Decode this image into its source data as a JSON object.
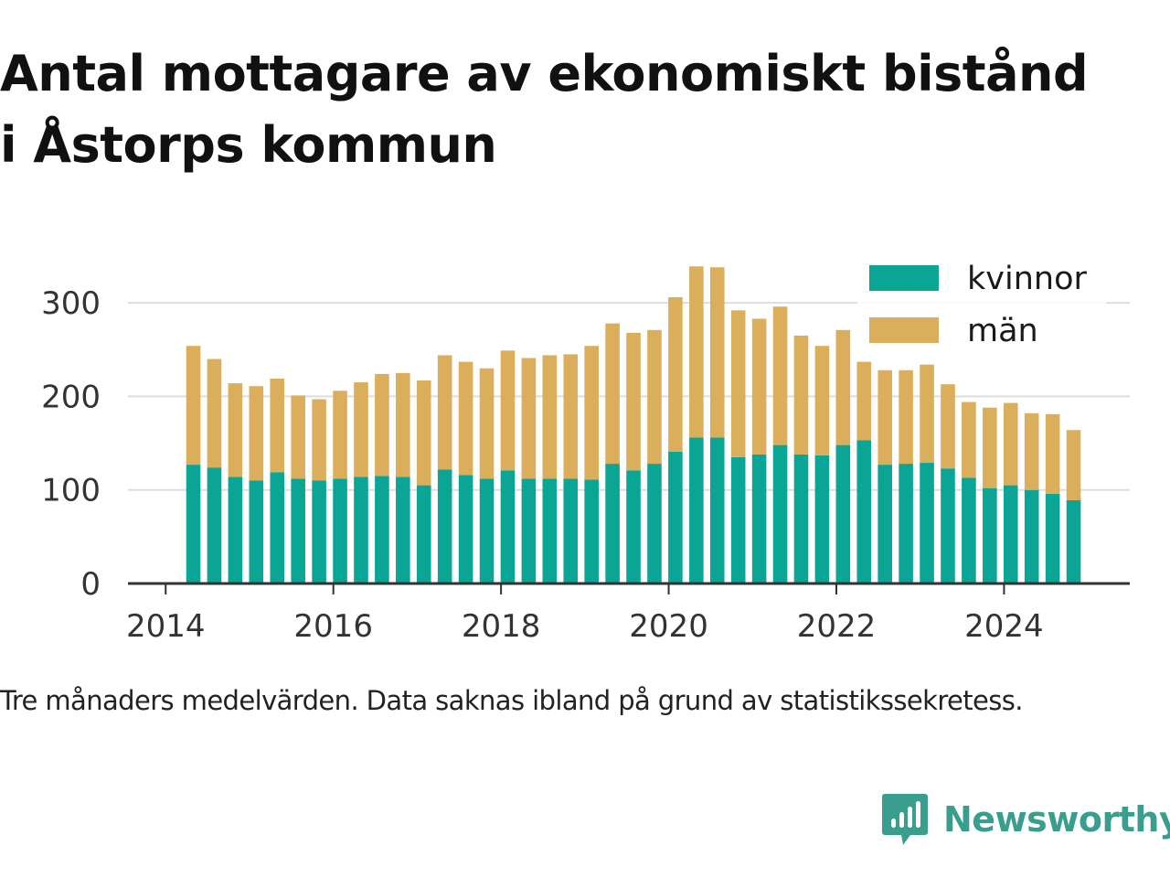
{
  "title_line1": "Antal mottagare av ekonomiskt bistånd",
  "title_line2": "i Åstorps kommun",
  "caption": "Tre månaders medelvärden. Data saknas ibland på grund av statistikssekretess.",
  "brand": {
    "name": "Newsworthy",
    "color": "#3a9e8e",
    "icon": "chart-speech-bubble-icon"
  },
  "colors": {
    "kvinnor": "#0aa595",
    "man": "#dbae5b",
    "grid": "#dddddd",
    "axis": "#333333",
    "tick_text": "#333333"
  },
  "chart_data": {
    "type": "bar",
    "stacked": true,
    "title": "Antal mottagare av ekonomiskt bistånd i Åstorps kommun",
    "xlabel": "",
    "ylabel": "",
    "xlim": [
      2013.55,
      2025.5
    ],
    "ylim": [
      0,
      350
    ],
    "x_ticks": [
      2014,
      2016,
      2018,
      2020,
      2022,
      2024
    ],
    "y_ticks": [
      0,
      100,
      200,
      300
    ],
    "grid": true,
    "legend_position": "top-right",
    "x": [
      2014.33,
      2014.58,
      2014.83,
      2015.08,
      2015.33,
      2015.58,
      2015.83,
      2016.08,
      2016.33,
      2016.58,
      2016.83,
      2017.08,
      2017.33,
      2017.58,
      2017.83,
      2018.08,
      2018.33,
      2018.58,
      2018.83,
      2019.08,
      2019.33,
      2019.58,
      2019.83,
      2020.08,
      2020.33,
      2020.58,
      2020.83,
      2021.08,
      2021.33,
      2021.58,
      2021.83,
      2022.08,
      2022.33,
      2022.58,
      2022.83,
      2023.08,
      2023.33,
      2023.58,
      2023.83,
      2024.08,
      2024.33,
      2024.58,
      2024.83
    ],
    "series": [
      {
        "name": "kvinnor",
        "values": [
          127,
          124,
          114,
          110,
          119,
          112,
          110,
          112,
          114,
          115,
          114,
          105,
          122,
          116,
          112,
          121,
          112,
          112,
          112,
          111,
          128,
          121,
          128,
          141,
          156,
          156,
          135,
          138,
          148,
          138,
          137,
          148,
          153,
          127,
          128,
          129,
          123,
          113,
          102,
          105,
          100,
          96,
          89
        ]
      },
      {
        "name": "män",
        "values": [
          127,
          116,
          100,
          101,
          100,
          89,
          87,
          94,
          101,
          109,
          111,
          112,
          122,
          121,
          118,
          128,
          129,
          132,
          133,
          143,
          150,
          147,
          143,
          165,
          183,
          182,
          157,
          145,
          148,
          127,
          117,
          123,
          84,
          101,
          100,
          105,
          90,
          81,
          86,
          88,
          82,
          85,
          75
        ]
      }
    ]
  }
}
